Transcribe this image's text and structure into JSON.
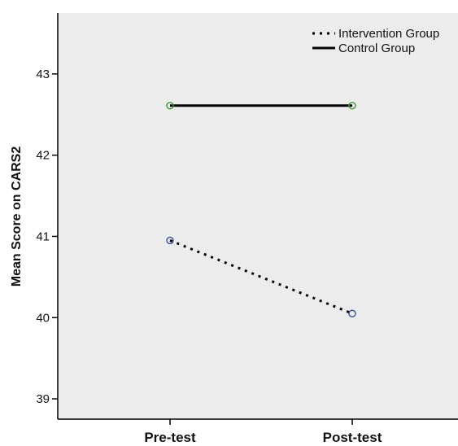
{
  "chart_data": {
    "type": "line",
    "categories": [
      "Pre-test",
      "Post-test"
    ],
    "series": [
      {
        "name": "Intervention Group",
        "values": [
          40.95,
          40.05
        ],
        "line_style": "dotted",
        "line_color": "#000000",
        "marker_color": "#3b4ea3"
      },
      {
        "name": "Control Group",
        "values": [
          42.61,
          42.61
        ],
        "line_style": "solid",
        "line_color": "#000000",
        "marker_color": "#3c9a3c"
      }
    ],
    "xlabel": "",
    "ylabel": "Mean Score on CARS2",
    "y_ticks": [
      39,
      40,
      41,
      42,
      43
    ],
    "ylim": [
      38.75,
      43.75
    ],
    "grid": false,
    "legend_position": "top-right",
    "plot_background": "#ececec"
  }
}
